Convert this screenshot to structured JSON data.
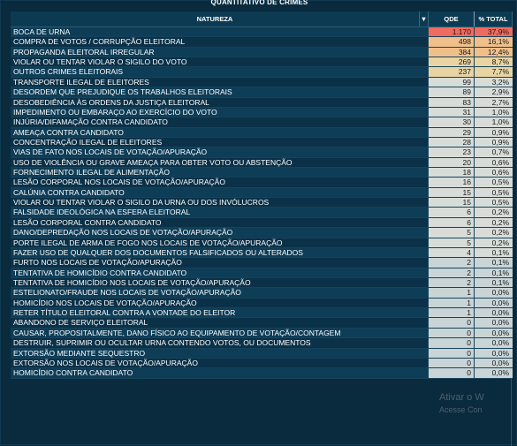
{
  "title": "QUANTITATIVO DE CRIMES",
  "headers": {
    "natureza": "NATUREZA",
    "sort_icon": "▼",
    "qde": "QDE",
    "pct": "% TOTAL"
  },
  "rows": [
    {
      "natureza": "BOCA DE URNA",
      "qde": "1.170",
      "pct": "37,9%"
    },
    {
      "natureza": "COMPRA DE VOTOS / CORRUPÇÃO ELEITORAL",
      "qde": "498",
      "pct": "16,1%"
    },
    {
      "natureza": "PROPAGANDA ELEITORAL IRREGULAR",
      "qde": "384",
      "pct": "12,4%"
    },
    {
      "natureza": "VIOLAR OU TENTAR VIOLAR O SIGILO DO VOTO",
      "qde": "269",
      "pct": "8,7%"
    },
    {
      "natureza": "OUTROS CRIMES ELEITORAIS",
      "qde": "237",
      "pct": "7,7%"
    },
    {
      "natureza": "TRANSPORTE ILEGAL DE ELEITORES",
      "qde": "99",
      "pct": "3,2%"
    },
    {
      "natureza": "DESORDEM QUE PREJUDIQUE OS TRABALHOS ELEITORAIS",
      "qde": "89",
      "pct": "2,9%"
    },
    {
      "natureza": "DESOBEDIÊNCIA ÀS ORDENS DA JUSTIÇA ELEITORAL",
      "qde": "83",
      "pct": "2,7%"
    },
    {
      "natureza": "IMPEDIMENTO OU EMBARAÇO AO EXERCÍCIO DO VOTO",
      "qde": "31",
      "pct": "1,0%"
    },
    {
      "natureza": "INJÚRIA/DIFAMAÇÃO CONTRA CANDIDATO",
      "qde": "30",
      "pct": "1,0%"
    },
    {
      "natureza": "AMEAÇA CONTRA CANDIDATO",
      "qde": "29",
      "pct": "0,9%"
    },
    {
      "natureza": "CONCENTRAÇÃO ILEGAL DE ELEITORES",
      "qde": "28",
      "pct": "0,9%"
    },
    {
      "natureza": "VIAS DE FATO NOS LOCAIS DE VOTAÇÃO/APURAÇÃO",
      "qde": "23",
      "pct": "0,7%"
    },
    {
      "natureza": "USO DE VIOLÊNCIA OU GRAVE AMEAÇA PARA OBTER VOTO OU ABSTENÇÃO",
      "qde": "20",
      "pct": "0,6%"
    },
    {
      "natureza": "FORNECIMENTO ILEGAL DE ALIMENTAÇÃO",
      "qde": "18",
      "pct": "0,6%"
    },
    {
      "natureza": "LESÃO CORPORAL NOS LOCAIS DE VOTAÇÃO/APURAÇÃO",
      "qde": "16",
      "pct": "0,5%"
    },
    {
      "natureza": "CALÚNIA CONTRA CANDIDATO",
      "qde": "15",
      "pct": "0,5%"
    },
    {
      "natureza": "VIOLAR OU TENTAR VIOLAR O SIGILO DA URNA OU DOS INVÓLUCROS",
      "qde": "15",
      "pct": "0,5%"
    },
    {
      "natureza": "FALSIDADE IDEOLÓGICA NA ESFERA ELEITORAL",
      "qde": "6",
      "pct": "0,2%"
    },
    {
      "natureza": "LESÃO CORPORAL CONTRA CANDIDATO",
      "qde": "6",
      "pct": "0,2%"
    },
    {
      "natureza": "DANO/DEPREDAÇÃO NOS LOCAIS DE VOTAÇÃO/APURAÇÃO",
      "qde": "5",
      "pct": "0,2%"
    },
    {
      "natureza": "PORTE ILEGAL DE ARMA DE FOGO NOS LOCAIS DE VOTAÇÃO/APURAÇÃO",
      "qde": "5",
      "pct": "0,2%"
    },
    {
      "natureza": "FAZER USO DE QUALQUER DOS DOCUMENTOS FALSIFICADOS OU ALTERADOS",
      "qde": "4",
      "pct": "0,1%"
    },
    {
      "natureza": "FURTO NOS LOCAIS DE VOTAÇÃO/APURAÇÃO",
      "qde": "2",
      "pct": "0,1%"
    },
    {
      "natureza": "TENTATIVA DE HOMICÍDIO CONTRA CANDIDATO",
      "qde": "2",
      "pct": "0,1%"
    },
    {
      "natureza": "TENTATIVA DE HOMICÍDIO NOS LOCAIS DE VOTAÇÃO/APURAÇÃO",
      "qde": "2",
      "pct": "0,1%"
    },
    {
      "natureza": "ESTELIONATO/FRAUDE NOS LOCAIS DE VOTAÇÃO/APURAÇÃO",
      "qde": "1",
      "pct": "0,0%"
    },
    {
      "natureza": "HOMICÍDIO NOS LOCAIS DE VOTAÇÃO/APURAÇÃO",
      "qde": "1",
      "pct": "0,0%"
    },
    {
      "natureza": "RETER TÍTULO ELEITORAL CONTRA A VONTADE DO ELEITOR",
      "qde": "1",
      "pct": "0,0%"
    },
    {
      "natureza": "ABANDONO DE SERVIÇO ELEITORAL",
      "qde": "0",
      "pct": "0,0%"
    },
    {
      "natureza": "CAUSAR, PROPOSITALMENTE, DANO FÍSICO AO EQUIPAMENTO DE VOTAÇÃO/CONTAGEM",
      "qde": "0",
      "pct": "0,0%"
    },
    {
      "natureza": "DESTRUIR, SUPRIMIR OU OCULTAR URNA CONTENDO VOTOS, OU DOCUMENTOS",
      "qde": "0",
      "pct": "0,0%"
    },
    {
      "natureza": "EXTORSÃO MEDIANTE SEQUESTRO",
      "qde": "0",
      "pct": "0,0%"
    },
    {
      "natureza": "EXTORSÃO NOS LOCAIS DE VOTAÇÃO/APURAÇÃO",
      "qde": "0",
      "pct": "0,0%"
    },
    {
      "natureza": "HOMICÍDIO CONTRA CANDIDATO",
      "qde": "0",
      "pct": "0,0%"
    }
  ],
  "watermark": {
    "line1": "Ativar o W",
    "line2": "Acesse Con"
  },
  "colors": {
    "background": "#0a2a3d",
    "heat_max": "#f06a5f",
    "heat_high": "#f0c08a",
    "heat_mid": "#e8d3a3",
    "heat_low": "#d7dcd9",
    "heat_min": "#c9d4d6"
  }
}
